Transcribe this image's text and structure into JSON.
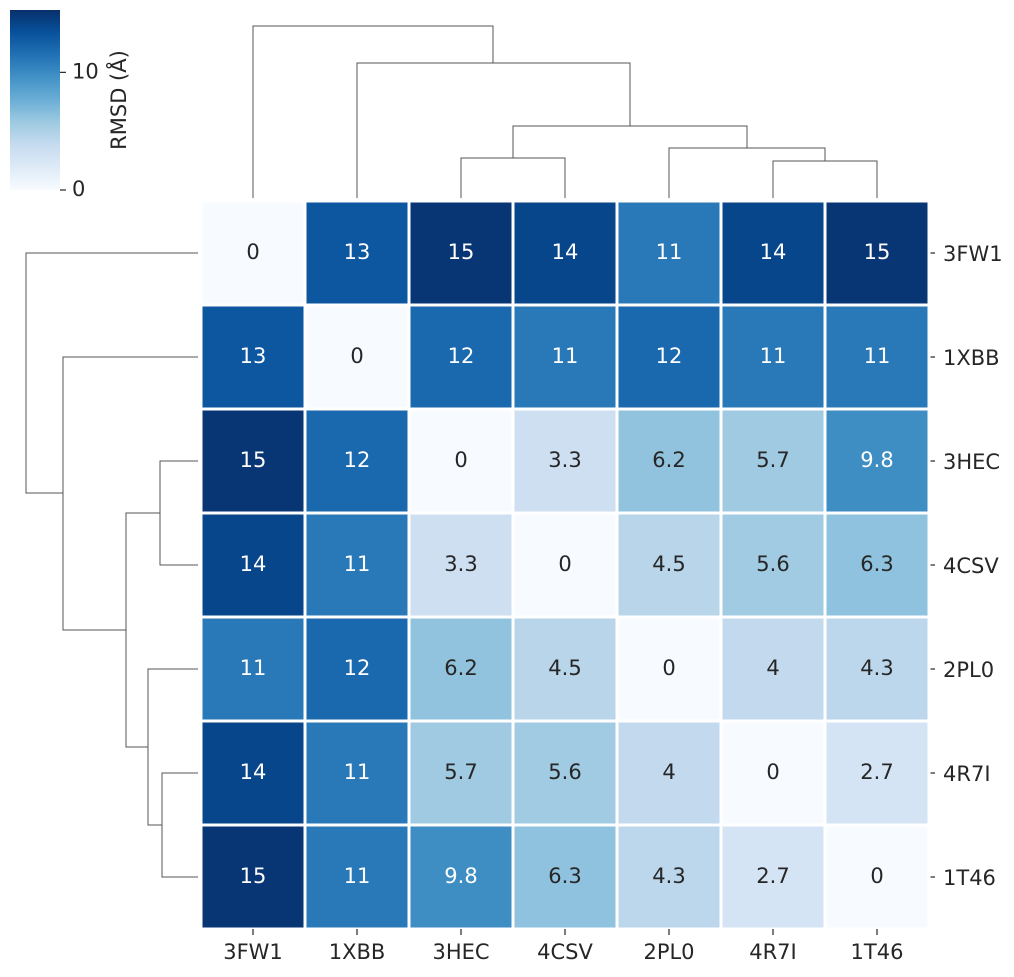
{
  "chart_data": {
    "type": "heatmap",
    "rows": [
      "3FW1",
      "1XBB",
      "3HEC",
      "4CSV",
      "2PL0",
      "4R7I",
      "1T46"
    ],
    "columns": [
      "3FW1",
      "1XBB",
      "3HEC",
      "4CSV",
      "2PL0",
      "4R7I",
      "1T46"
    ],
    "values": [
      [
        0,
        13,
        15,
        14,
        11,
        14,
        15
      ],
      [
        13,
        0,
        12,
        11,
        12,
        11,
        11
      ],
      [
        15,
        12,
        0,
        3.3,
        6.2,
        5.7,
        9.8
      ],
      [
        14,
        11,
        3.3,
        0,
        4.5,
        5.6,
        6.3
      ],
      [
        11,
        12,
        6.2,
        4.5,
        0,
        4,
        4.3
      ],
      [
        14,
        11,
        5.7,
        5.6,
        4,
        0,
        2.7
      ],
      [
        15,
        11,
        9.8,
        6.3,
        4.3,
        2.7,
        0
      ]
    ],
    "colormap": "Blues",
    "colorbar_label": "RMSD (Å)",
    "clim": [
      0,
      15.3
    ],
    "colorbar_ticks": [
      0,
      10
    ]
  }
}
